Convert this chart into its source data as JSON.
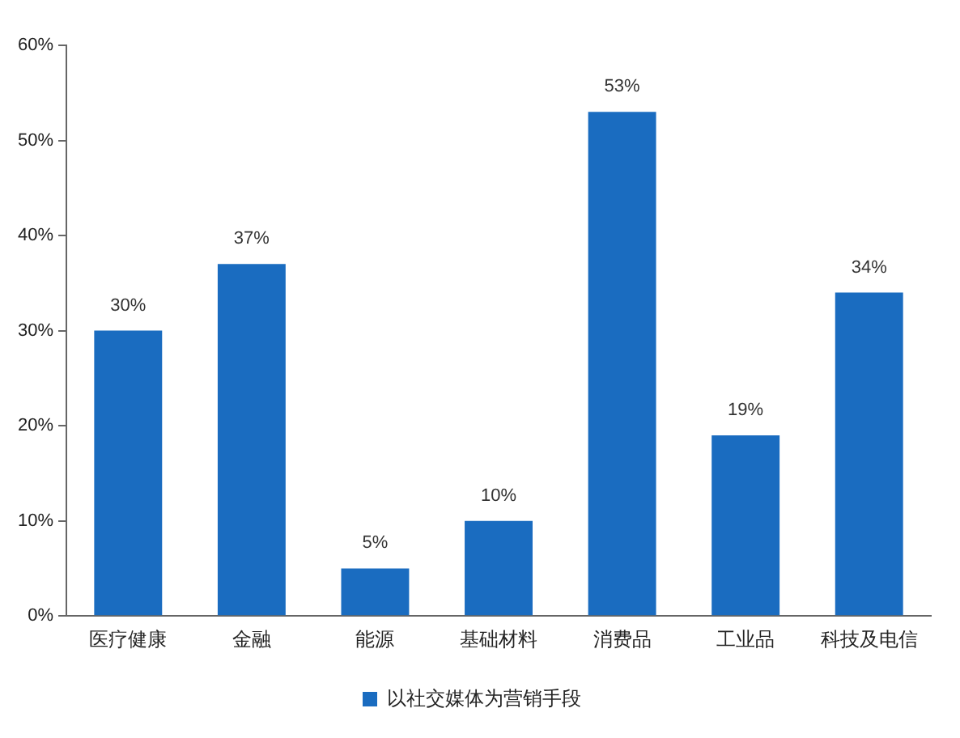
{
  "chart_data": {
    "type": "bar",
    "categories": [
      "医疗健康",
      "金融",
      "能源",
      "基础材料",
      "消费品",
      "工业品",
      "科技及电信"
    ],
    "series": [
      {
        "name": "以社交媒体为营销手段",
        "color": "#1a6cc0",
        "values": [
          30,
          37,
          5,
          10,
          53,
          19,
          34
        ]
      }
    ],
    "value_labels": [
      "30%",
      "37%",
      "5%",
      "10%",
      "53%",
      "19%",
      "34%"
    ],
    "ylim": [
      0,
      60
    ],
    "yticks": [
      {
        "value": 0,
        "label": "0%"
      },
      {
        "value": 10,
        "label": "10%"
      },
      {
        "value": 20,
        "label": "20%"
      },
      {
        "value": 30,
        "label": "30%"
      },
      {
        "value": 40,
        "label": "40%"
      },
      {
        "value": 50,
        "label": "50%"
      },
      {
        "value": 60,
        "label": "60%"
      }
    ],
    "grid": false,
    "legend": "bottom"
  }
}
